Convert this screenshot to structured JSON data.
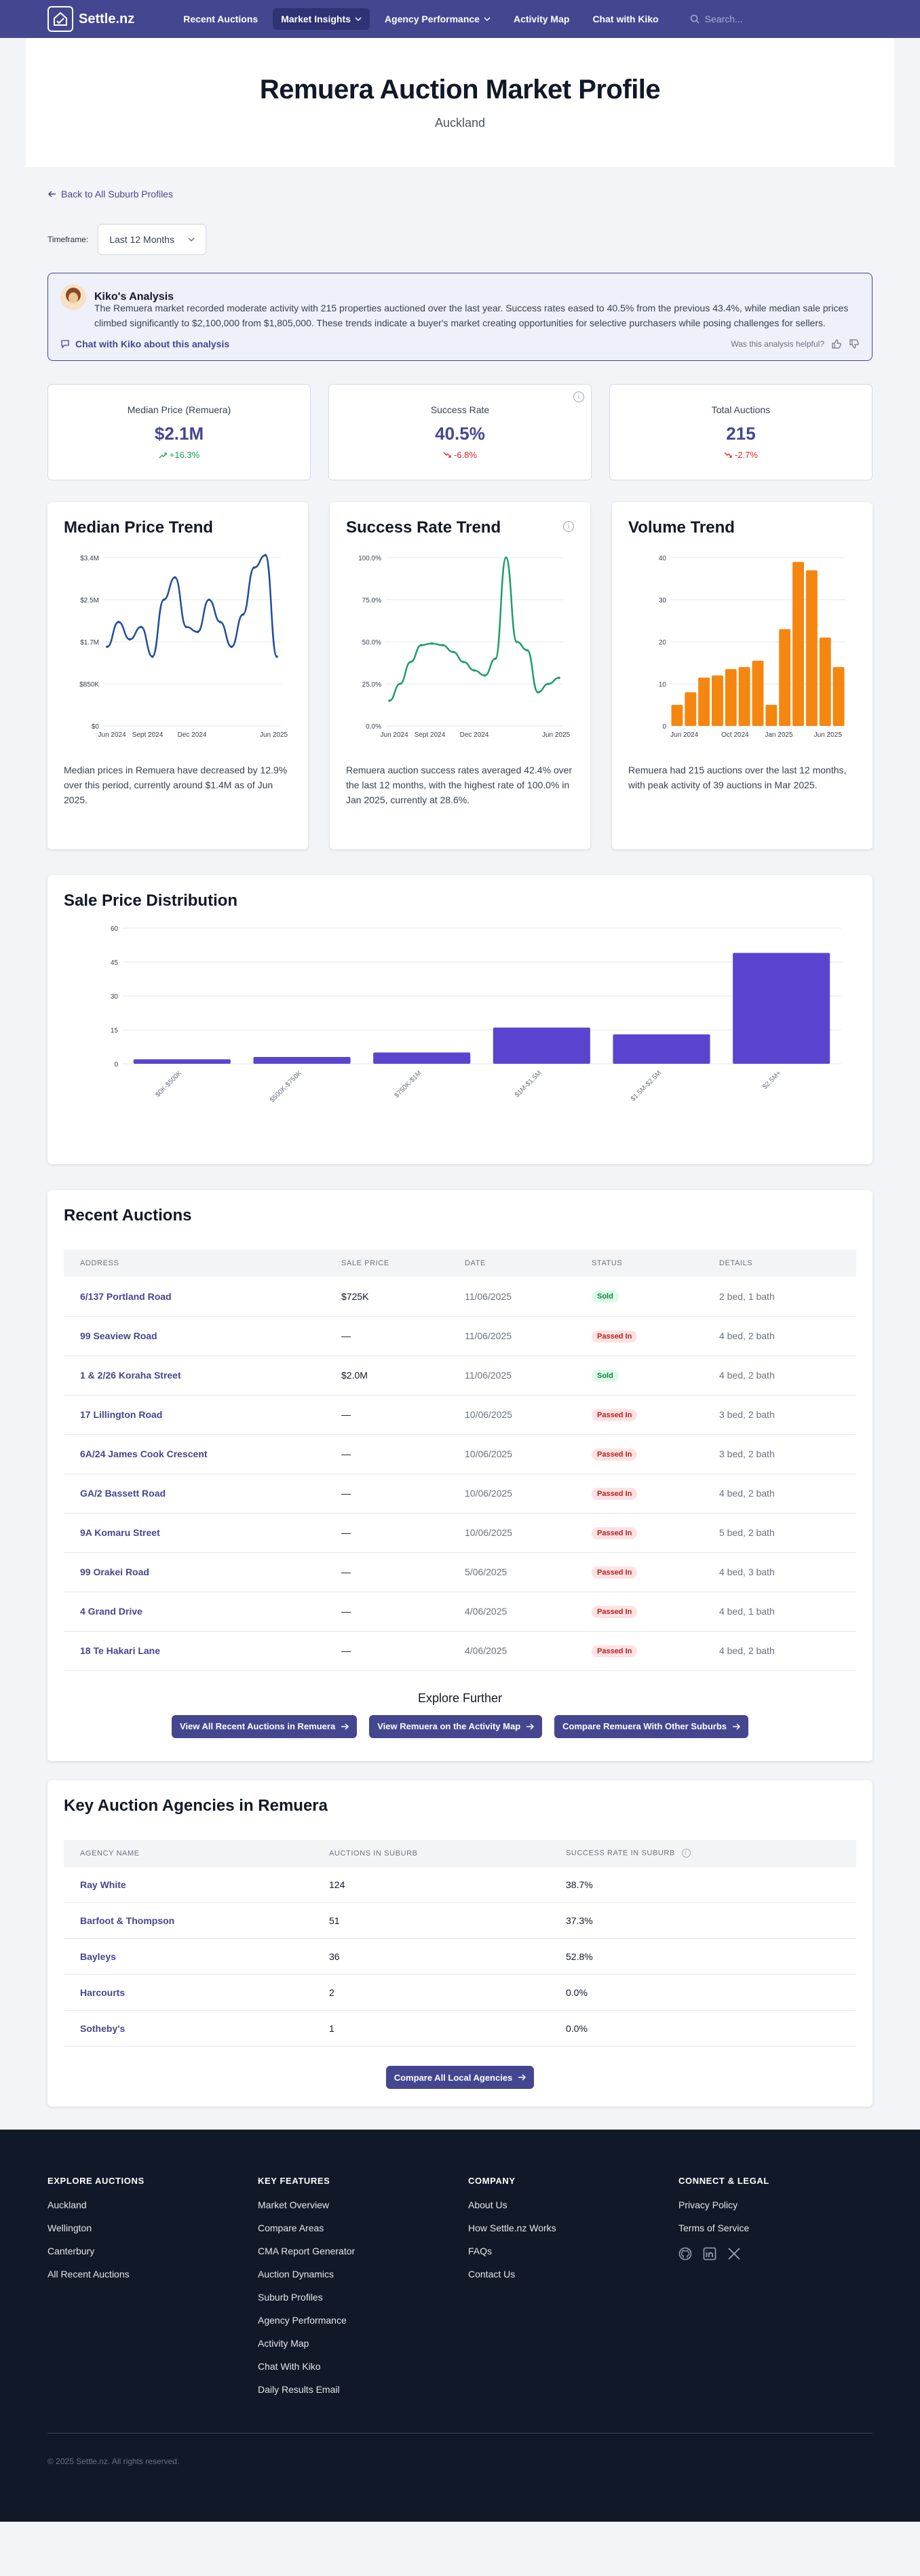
{
  "nav": {
    "brand": "Settle.nz",
    "links": [
      "Recent Auctions",
      "Market Insights",
      "Agency Performance",
      "Activity Map",
      "Chat with Kiko"
    ],
    "search_placeholder": "Search..."
  },
  "hero": {
    "title": "Remuera Auction Market Profile",
    "subtitle": "Auckland"
  },
  "back_link": "Back to All Suburb Profiles",
  "timeframe": {
    "label": "Timeframe:",
    "value": "Last 12 Months"
  },
  "kiko": {
    "title": "Kiko's Analysis",
    "text": "The Remuera market recorded moderate activity with 215 properties auctioned over the last year. Success rates eased to 40.5% from the previous 43.4%, while median sale prices climbed significantly to $2,100,000 from $1,805,000. These trends indicate a buyer's market creating opportunities for selective purchasers while posing challenges for sellers.",
    "chat_link": "Chat with Kiko about this analysis",
    "helpful": "Was this analysis helpful?"
  },
  "stats": [
    {
      "label": "Median Price (Remuera)",
      "value": "$2.1M",
      "change": "+16.3%",
      "dir": "up"
    },
    {
      "label": "Success Rate",
      "value": "40.5%",
      "change": "-6.8%",
      "dir": "down"
    },
    {
      "label": "Total Auctions",
      "value": "215",
      "change": "-2.7%",
      "dir": "down"
    }
  ],
  "trends": {
    "median": {
      "title": "Median Price Trend",
      "desc": "Median prices in Remuera have decreased by 12.9% over this period, currently around $1.4M as of Jun 2025."
    },
    "success": {
      "title": "Success Rate Trend",
      "desc": "Remuera auction success rates averaged 42.4% over the last 12 months, with the highest rate of 100.0% in Jan 2025, currently at 28.6%."
    },
    "volume": {
      "title": "Volume Trend",
      "desc": "Remuera had 215 auctions over the last 12 months, with peak activity of 39 auctions in Mar 2025."
    }
  },
  "chart_data": [
    {
      "type": "line",
      "title": "Median Price Trend",
      "y_ticks": [
        "$0",
        "$850K",
        "$1.7M",
        "$2.5M",
        "$3.4M"
      ],
      "ylim": [
        0,
        3400000
      ],
      "x_ticks": [
        "Jun 2024",
        "Sept 2024",
        "Dec 2024",
        "Jun 2025"
      ],
      "values": [
        1600000,
        2100000,
        1750000,
        2000000,
        1400000,
        2550000,
        3000000,
        2000000,
        1900000,
        2550000,
        2100000,
        1600000,
        2250000,
        3200000,
        3450000,
        1400000
      ],
      "color": "#1f4e9c"
    },
    {
      "type": "line",
      "title": "Success Rate Trend",
      "y_ticks": [
        "0.0%",
        "25.0%",
        "50.0%",
        "75.0%",
        "100.0%"
      ],
      "ylim": [
        0,
        100
      ],
      "x_ticks": [
        "Jun 2024",
        "Sept 2024",
        "Dec 2024",
        "Jun 2025"
      ],
      "values": [
        15,
        25,
        38,
        48,
        49,
        48,
        44,
        38,
        33,
        30,
        40,
        100,
        50,
        45,
        20,
        25,
        28.6
      ],
      "color": "#1e9e6a"
    },
    {
      "type": "bar",
      "title": "Volume Trend",
      "y_ticks": [
        "0",
        "10",
        "20",
        "30",
        "40"
      ],
      "ylim": [
        0,
        40
      ],
      "x_ticks": [
        "Jun 2024",
        "Oct 2024",
        "Jan 2025",
        "Jun 2025"
      ],
      "values": [
        5,
        8,
        11.5,
        12,
        13.5,
        14,
        15.5,
        5,
        23,
        39,
        37,
        21,
        14
      ],
      "color": "#f5860f"
    },
    {
      "type": "bar",
      "title": "Sale Price Distribution",
      "y_ticks": [
        "0",
        "15",
        "30",
        "45",
        "60"
      ],
      "ylim": [
        0,
        60
      ],
      "categories": [
        "$0K-$500K",
        "$500K-$750K",
        "$750K-$1M",
        "$1M-$1.5M",
        "$1.5M-$2.5M",
        "$2.5M+"
      ],
      "values": [
        2,
        3,
        5,
        16,
        13,
        49
      ],
      "color": "#5a44cf"
    }
  ],
  "distribution": {
    "title": "Sale Price Distribution"
  },
  "recent": {
    "title": "Recent Auctions",
    "columns": [
      "Address",
      "Sale Price",
      "Date",
      "Status",
      "Details"
    ],
    "rows": [
      {
        "address": "6/137 Portland Road",
        "price": "$725K",
        "date": "11/06/2025",
        "status": "Sold",
        "details": "2 bed, 1 bath"
      },
      {
        "address": "99 Seaview Road",
        "price": "—",
        "date": "11/06/2025",
        "status": "Passed In",
        "details": "4 bed, 2 bath"
      },
      {
        "address": "1 & 2/26 Koraha Street",
        "price": "$2.0M",
        "date": "11/06/2025",
        "status": "Sold",
        "details": "4 bed, 2 bath"
      },
      {
        "address": "17 Lillington Road",
        "price": "—",
        "date": "10/06/2025",
        "status": "Passed In",
        "details": "3 bed, 2 bath"
      },
      {
        "address": "6A/24 James Cook Crescent",
        "price": "—",
        "date": "10/06/2025",
        "status": "Passed In",
        "details": "3 bed, 2 bath"
      },
      {
        "address": "GA/2 Bassett Road",
        "price": "—",
        "date": "10/06/2025",
        "status": "Passed In",
        "details": "4 bed, 2 bath"
      },
      {
        "address": "9A Komaru Street",
        "price": "—",
        "date": "10/06/2025",
        "status": "Passed In",
        "details": "5 bed, 2 bath"
      },
      {
        "address": "99 Orakei Road",
        "price": "—",
        "date": "5/06/2025",
        "status": "Passed In",
        "details": "4 bed, 3 bath"
      },
      {
        "address": "4 Grand Drive",
        "price": "—",
        "date": "4/06/2025",
        "status": "Passed In",
        "details": "4 bed, 1 bath"
      },
      {
        "address": "18 Te Hakari Lane",
        "price": "—",
        "date": "4/06/2025",
        "status": "Passed In",
        "details": "4 bed, 2 bath"
      }
    ],
    "explore_title": "Explore Further",
    "buttons": [
      "View All Recent Auctions in Remuera",
      "View Remuera on the Activity Map",
      "Compare Remuera With Other Suburbs"
    ]
  },
  "agencies": {
    "title": "Key Auction Agencies in Remuera",
    "columns": [
      "Agency Name",
      "Auctions in Suburb",
      "Success Rate in Suburb"
    ],
    "rows": [
      {
        "name": "Ray White",
        "auctions": "124",
        "rate": "38.7%"
      },
      {
        "name": "Barfoot & Thompson",
        "auctions": "51",
        "rate": "37.3%"
      },
      {
        "name": "Bayleys",
        "auctions": "36",
        "rate": "52.8%"
      },
      {
        "name": "Harcourts",
        "auctions": "2",
        "rate": "0.0%"
      },
      {
        "name": "Sotheby's",
        "auctions": "1",
        "rate": "0.0%"
      }
    ],
    "button": "Compare All Local Agencies"
  },
  "footer": {
    "cols": [
      {
        "title": "Explore Auctions",
        "links": [
          "Auckland",
          "Wellington",
          "Canterbury",
          "All Recent Auctions"
        ]
      },
      {
        "title": "Key Features",
        "links": [
          "Market Overview",
          "Compare Areas",
          "CMA Report Generator",
          "Auction Dynamics",
          "Suburb Profiles",
          "Agency Performance",
          "Activity Map",
          "Chat With Kiko",
          "Daily Results Email"
        ]
      },
      {
        "title": "Company",
        "links": [
          "About Us",
          "How Settle.nz Works",
          "FAQs",
          "Contact Us"
        ]
      },
      {
        "title": "Connect & Legal",
        "links": [
          "Privacy Policy",
          "Terms of Service"
        ]
      }
    ],
    "socials": [
      "github-icon",
      "linkedin-icon",
      "x-icon"
    ],
    "copyright": "© 2025 Settle.nz. All rights reserved."
  },
  "colors": {
    "brand": "#44478f",
    "footer_bg": "#111827"
  }
}
